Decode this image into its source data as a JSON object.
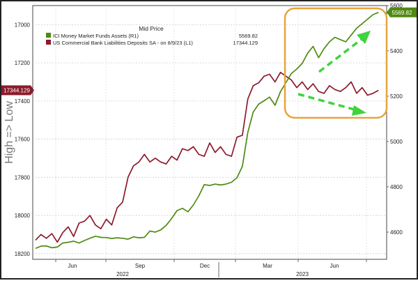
{
  "chart_data": {
    "type": "line",
    "title": "",
    "legend": {
      "header": "Mid Price",
      "placement": "top-left",
      "entries": [
        {
          "label": "ICI Money Market Funds Assets  (R1)",
          "value": "5569.82"
        },
        {
          "label": "US Commercial Bank Liabilities Deposits SA -  on 8/9/23  (L1)",
          "value": "17344.129"
        }
      ]
    },
    "left_axis": {
      "label": "High => Low",
      "inverted": true,
      "ylim": [
        16900,
        18230
      ],
      "ticks": [
        "17000",
        "17200",
        "17400",
        "17600",
        "17800",
        "18000",
        "18200"
      ],
      "last_value_tag": "17344.129"
    },
    "right_axis": {
      "ylim": [
        4480,
        5600
      ],
      "ticks": [
        "5600",
        "5400",
        "5200",
        "5000",
        "4800",
        "4600"
      ],
      "last_value_tag": "5569.82"
    },
    "x_axis": {
      "month_ticks": [
        "Jun",
        "Sep",
        "Dec",
        "Mar",
        "Jun"
      ],
      "year_labels": [
        "2022",
        "2023"
      ],
      "xlim": [
        0,
        64
      ]
    },
    "series": [
      {
        "name": "ICI Money Market Funds Assets  (R1)",
        "axis": "right",
        "color": "#4f8a10",
        "x": [
          0,
          1,
          2,
          3,
          4,
          5,
          6,
          7,
          8,
          9,
          10,
          11,
          12,
          13,
          14,
          15,
          16,
          17,
          18,
          19,
          20,
          21,
          22,
          23,
          24,
          25,
          26,
          27,
          28,
          29,
          30,
          31,
          32,
          33,
          34,
          35,
          36,
          37,
          38,
          39,
          40,
          41,
          42,
          43,
          44,
          45,
          46,
          47,
          48,
          49,
          50,
          51,
          52,
          53,
          54,
          55,
          56,
          57,
          58,
          59,
          60,
          61,
          62,
          63
        ],
        "values": [
          4528,
          4538,
          4539,
          4531,
          4534,
          4552,
          4555,
          4560,
          4552,
          4563,
          4573,
          4582,
          4577,
          4576,
          4572,
          4575,
          4573,
          4569,
          4579,
          4575,
          4577,
          4605,
          4600,
          4610,
          4630,
          4660,
          4695,
          4705,
          4690,
          4720,
          4760,
          4810,
          4806,
          4812,
          4808,
          4812,
          4820,
          4840,
          4890,
          5040,
          5130,
          5165,
          5180,
          5196,
          5160,
          5220,
          5260,
          5300,
          5320,
          5345,
          5390,
          5420,
          5370,
          5410,
          5440,
          5460,
          5450,
          5440,
          5470,
          5500,
          5520,
          5540,
          5560,
          5569.82
        ]
      },
      {
        "name": "US Commercial Bank Liabilities Deposits SA -  on 8/9/23  (L1)",
        "axis": "left",
        "color": "#8b1a2b",
        "x": [
          0,
          1,
          2,
          3,
          4,
          5,
          6,
          7,
          8,
          9,
          10,
          11,
          12,
          13,
          14,
          15,
          16,
          17,
          18,
          19,
          20,
          21,
          22,
          23,
          24,
          25,
          26,
          27,
          28,
          29,
          30,
          31,
          32,
          33,
          34,
          35,
          36,
          37,
          38,
          39,
          40,
          41,
          42,
          43,
          44,
          45,
          46,
          47,
          48,
          49,
          50,
          51,
          52,
          53,
          54,
          55,
          56,
          57,
          58,
          59,
          60,
          61,
          62,
          63
        ],
        "values": [
          18130,
          18100,
          18120,
          18095,
          18140,
          18090,
          18060,
          18110,
          18040,
          18030,
          18000,
          18050,
          18070,
          18020,
          18050,
          17960,
          17930,
          17800,
          17740,
          17720,
          17680,
          17720,
          17700,
          17720,
          17730,
          17690,
          17710,
          17650,
          17660,
          17640,
          17680,
          17690,
          17620,
          17670,
          17640,
          17680,
          17690,
          17590,
          17580,
          17390,
          17320,
          17305,
          17270,
          17260,
          17300,
          17250,
          17270,
          17290,
          17330,
          17300,
          17340,
          17310,
          17350,
          17360,
          17320,
          17340,
          17350,
          17330,
          17300,
          17360,
          17330,
          17370,
          17360,
          17344.129
        ]
      }
    ]
  }
}
